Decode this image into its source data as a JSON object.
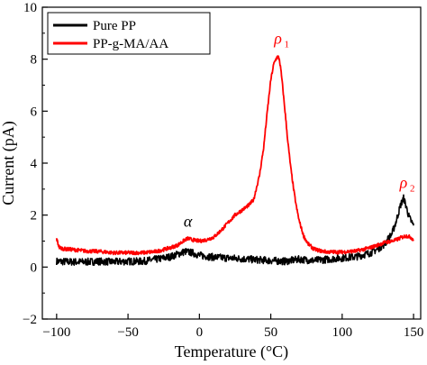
{
  "chart_data": {
    "type": "line",
    "xlabel": "Temperature (°C)",
    "ylabel": "Current (pA)",
    "xlim": [
      -110,
      155
    ],
    "ylim": [
      -2,
      10
    ],
    "xticks": [
      -100,
      -50,
      0,
      50,
      100,
      150
    ],
    "yticks": [
      -2,
      0,
      2,
      4,
      6,
      8,
      10
    ],
    "grid": false,
    "legend_position": "top-left",
    "series": [
      {
        "name": "Pure PP",
        "color": "#000000",
        "x": [
          -100,
          -90,
          -80,
          -70,
          -60,
          -50,
          -40,
          -30,
          -20,
          -15,
          -10,
          -5,
          0,
          10,
          20,
          30,
          40,
          50,
          60,
          70,
          80,
          90,
          100,
          110,
          120,
          125,
          130,
          135,
          138,
          141,
          143,
          145,
          147,
          150
        ],
        "y": [
          0.22,
          0.2,
          0.2,
          0.22,
          0.2,
          0.22,
          0.22,
          0.3,
          0.4,
          0.5,
          0.6,
          0.55,
          0.45,
          0.38,
          0.35,
          0.32,
          0.28,
          0.25,
          0.22,
          0.3,
          0.25,
          0.3,
          0.35,
          0.4,
          0.55,
          0.7,
          0.9,
          1.3,
          1.8,
          2.4,
          2.65,
          2.3,
          1.9,
          1.6
        ]
      },
      {
        "name": "PP-g-MA/AA",
        "color": "#ff0000",
        "x": [
          -100,
          -99,
          -98,
          -95,
          -90,
          -80,
          -70,
          -60,
          -50,
          -40,
          -30,
          -20,
          -15,
          -10,
          -8,
          -5,
          0,
          5,
          10,
          15,
          20,
          25,
          30,
          35,
          38,
          42,
          45,
          48,
          50,
          52,
          54,
          55,
          56,
          57,
          58,
          60,
          62,
          64,
          66,
          68,
          70,
          73,
          76,
          80,
          85,
          90,
          100,
          110,
          120,
          125,
          130,
          135,
          138,
          140,
          142,
          145,
          148,
          150
        ],
        "y": [
          1.1,
          0.9,
          0.75,
          0.7,
          0.68,
          0.62,
          0.6,
          0.55,
          0.55,
          0.55,
          0.6,
          0.75,
          0.85,
          1.05,
          1.1,
          1.05,
          1.0,
          1.05,
          1.15,
          1.4,
          1.7,
          2.0,
          2.2,
          2.4,
          2.6,
          3.5,
          4.6,
          6.2,
          7.2,
          7.8,
          8.05,
          8.1,
          8.0,
          7.6,
          7.1,
          6.0,
          4.8,
          3.8,
          3.0,
          2.3,
          1.75,
          1.2,
          0.9,
          0.7,
          0.62,
          0.58,
          0.58,
          0.62,
          0.75,
          0.85,
          0.95,
          1.0,
          1.05,
          1.1,
          1.15,
          1.2,
          1.15,
          1.05
        ]
      }
    ],
    "annotations": [
      {
        "symbol": "α",
        "subscript": "",
        "x": -8,
        "y": 1.55,
        "color": "#000000"
      },
      {
        "symbol": "ρ",
        "subscript": "1",
        "x": 55,
        "y": 8.6,
        "color": "#ff0000"
      },
      {
        "symbol": "ρ",
        "subscript": "2",
        "x": 143,
        "y": 3.05,
        "color": "#ff0000"
      }
    ]
  }
}
